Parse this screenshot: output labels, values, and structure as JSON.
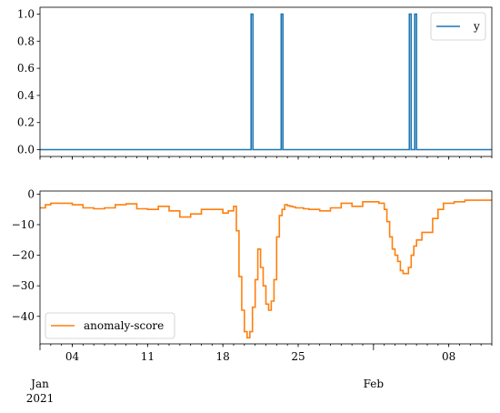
{
  "chart_data": [
    {
      "type": "line",
      "x_range": [
        "2021-01-01",
        "2021-02-12"
      ],
      "ylim": [
        -0.05,
        1.05
      ],
      "yticks": [
        0.0,
        0.2,
        0.4,
        0.6,
        0.8,
        1.0
      ],
      "ytick_labels": [
        "0.0",
        "0.2",
        "0.4",
        "0.6",
        "0.8",
        "1.0"
      ],
      "legend": {
        "placement": "top-right",
        "entries": [
          "y"
        ]
      },
      "series": [
        {
          "name": "y",
          "color": "#1f77b4",
          "baseline": 0,
          "spikes": [
            {
              "start": "2021-01-20T15:00",
              "end": "2021-01-20T19:00",
              "value": 1
            },
            {
              "start": "2021-01-23T10:00",
              "end": "2021-01-23T14:00",
              "value": 1
            },
            {
              "start": "2021-02-04T08:00",
              "end": "2021-02-04T12:00",
              "value": 1
            },
            {
              "start": "2021-02-04T20:00",
              "end": "2021-02-05T00:00",
              "value": 1
            }
          ]
        }
      ]
    },
    {
      "type": "line",
      "x_range": [
        "2021-01-01",
        "2021-02-12"
      ],
      "ylim": [
        -49,
        1
      ],
      "yticks": [
        0,
        -10,
        -20,
        -30,
        -40
      ],
      "ytick_labels": [
        "0",
        "−10",
        "−20",
        "−30",
        "−40"
      ],
      "legend": {
        "placement": "bottom-left",
        "entries": [
          "anomaly-score"
        ]
      },
      "x_major_ticks": [
        {
          "date": "2021-01-01",
          "label": "Jan\n2021"
        },
        {
          "date": "2021-02-01",
          "label": "Feb"
        }
      ],
      "x_minor_ticks": [
        {
          "date": "2021-01-04",
          "label": "04"
        },
        {
          "date": "2021-01-11",
          "label": "11"
        },
        {
          "date": "2021-01-18",
          "label": "18"
        },
        {
          "date": "2021-01-25",
          "label": "25"
        },
        {
          "date": "2021-02-08",
          "label": "08"
        }
      ],
      "series": [
        {
          "name": "anomaly-score",
          "color": "#ff7f0e",
          "x": [
            "2021-01-01",
            "2021-01-01T12:00",
            "2021-01-02",
            "2021-01-03",
            "2021-01-04",
            "2021-01-05",
            "2021-01-06",
            "2021-01-07",
            "2021-01-08",
            "2021-01-09",
            "2021-01-10",
            "2021-01-11",
            "2021-01-12",
            "2021-01-13",
            "2021-01-14",
            "2021-01-15",
            "2021-01-16",
            "2021-01-17",
            "2021-01-18",
            "2021-01-18T12:00",
            "2021-01-19",
            "2021-01-19T06:00",
            "2021-01-19T12:00",
            "2021-01-19T18:00",
            "2021-01-20",
            "2021-01-20T06:00",
            "2021-01-20T12:00",
            "2021-01-20T18:00",
            "2021-01-21",
            "2021-01-21T06:00",
            "2021-01-21T12:00",
            "2021-01-21T18:00",
            "2021-01-22",
            "2021-01-22T06:00",
            "2021-01-22T12:00",
            "2021-01-22T18:00",
            "2021-01-23",
            "2021-01-23T06:00",
            "2021-01-23T12:00",
            "2021-01-23T18:00",
            "2021-01-24",
            "2021-01-24T06:00",
            "2021-01-24T12:00",
            "2021-01-24T18:00",
            "2021-01-25",
            "2021-01-25T12:00",
            "2021-01-26",
            "2021-01-27",
            "2021-01-28",
            "2021-01-29",
            "2021-01-30",
            "2021-01-31",
            "2021-02-01",
            "2021-02-01T12:00",
            "2021-02-02",
            "2021-02-02T06:00",
            "2021-02-02T12:00",
            "2021-02-02T18:00",
            "2021-02-03",
            "2021-02-03T06:00",
            "2021-02-03T12:00",
            "2021-02-03T18:00",
            "2021-02-04",
            "2021-02-04T06:00",
            "2021-02-04T12:00",
            "2021-02-04T18:00",
            "2021-02-05",
            "2021-02-05T12:00",
            "2021-02-06",
            "2021-02-06T12:00",
            "2021-02-07",
            "2021-02-07T12:00",
            "2021-02-08",
            "2021-02-08T12:00",
            "2021-02-09",
            "2021-02-09T12:00",
            "2021-02-10",
            "2021-02-10T12:00",
            "2021-02-11",
            "2021-02-11T12:00",
            "2021-02-12"
          ],
          "values": [
            -4.5,
            -3.5,
            -3,
            -3,
            -3.5,
            -4.5,
            -4.8,
            -4.5,
            -3.5,
            -3.2,
            -4.8,
            -5,
            -4,
            -5.5,
            -7.5,
            -6.5,
            -5,
            -5,
            -6.2,
            -5.5,
            -4,
            -12,
            -27,
            -38,
            -45,
            -47,
            -45,
            -37,
            -28,
            -18,
            -24,
            -30,
            -36,
            -38,
            -35,
            -28,
            -14,
            -7,
            -5,
            -3.5,
            -3.8,
            -4,
            -4.2,
            -4.5,
            -4.5,
            -4.8,
            -5,
            -5.5,
            -4.5,
            -3,
            -4,
            -2.5,
            -2.5,
            -3,
            -5,
            -9,
            -14,
            -18,
            -20,
            -22,
            -25,
            -26,
            -26,
            -24,
            -20,
            -17,
            -15,
            -12.5,
            -12.5,
            -8,
            -5,
            -3,
            -3,
            -2.5,
            -2.5,
            -2,
            -2,
            -2,
            -2,
            -2,
            -2
          ]
        }
      ]
    }
  ]
}
